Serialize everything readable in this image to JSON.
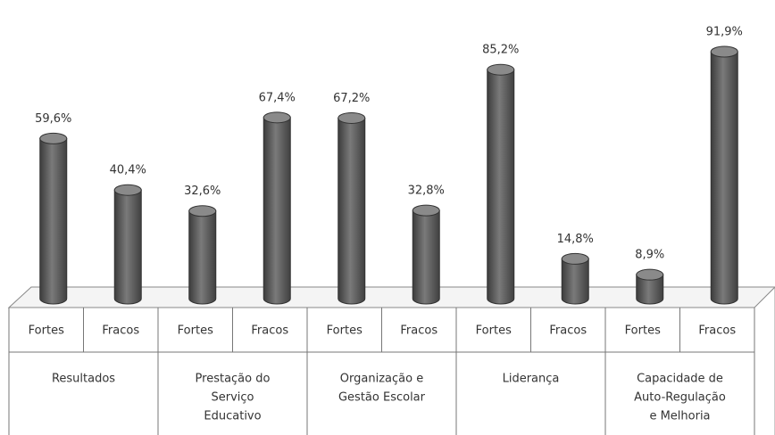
{
  "chart_data": {
    "type": "bar3d",
    "categories": [
      "Fortes",
      "Fracos",
      "Fortes",
      "Fracos",
      "Fortes",
      "Fracos",
      "Fortes",
      "Fracos",
      "Fortes",
      "Fracos"
    ],
    "groups": [
      [
        "Resultados"
      ],
      [
        "Prestação do",
        "Serviço",
        "Educativo"
      ],
      [
        "Organização e",
        "Gestão Escolar"
      ],
      [
        "Liderança"
      ],
      [
        "Capacidade de",
        "Auto-Regulação",
        "e Melhoria"
      ]
    ],
    "values": [
      59.6,
      40.4,
      32.6,
      67.4,
      67.2,
      32.8,
      85.2,
      14.8,
      8.9,
      91.9
    ],
    "value_labels": [
      "59,6%",
      "40,4%",
      "32,6%",
      "67,4%",
      "67,2%",
      "32,8%",
      "85,2%",
      "14,8%",
      "8,9%",
      "91,9%"
    ],
    "color": "#6a6a6a"
  }
}
